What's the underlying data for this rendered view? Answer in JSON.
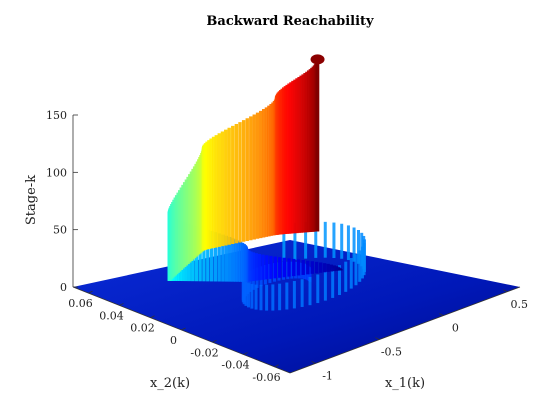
{
  "chart_data": {
    "type": "surface",
    "title": "Backward Reachability",
    "zlabel": "Stage-k",
    "x1label": "x_1(k)",
    "x2label": "x_2(k)",
    "z_ticks": [
      "0",
      "50",
      "100",
      "150"
    ],
    "z_tick_values": [
      0,
      50,
      100,
      150
    ],
    "zlim": [
      0,
      150
    ],
    "x2_ticks": [
      "0.06",
      "0.04",
      "0.02",
      "0",
      "-0.02",
      "-0.04",
      "-0.06"
    ],
    "x2_tick_values": [
      0.06,
      0.04,
      0.02,
      0,
      -0.02,
      -0.04,
      -0.06
    ],
    "x2lim": [
      -0.07,
      0.07
    ],
    "x1_ticks": [
      "0.5",
      "0",
      "-0.5",
      "-1"
    ],
    "x1_tick_values": [
      0.5,
      0,
      -0.5,
      -1
    ],
    "x1lim": [
      -1.2,
      0.6
    ],
    "colormap": "jet",
    "spiral": {
      "stage_start": 0,
      "stage_end": 150,
      "description_points": [
        {
          "k": 0,
          "x1": 0.05,
          "x2": 0.0
        },
        {
          "k": 30,
          "x1": -0.45,
          "x2": 0.02
        },
        {
          "k": 60,
          "x1": -0.75,
          "x2": 0.045
        },
        {
          "k": 90,
          "x1": -0.3,
          "x2": 0.06
        },
        {
          "k": 120,
          "x1": 0.15,
          "x2": 0.05
        },
        {
          "k": 150,
          "x1": 0.35,
          "x2": 0.04
        }
      ]
    }
  }
}
